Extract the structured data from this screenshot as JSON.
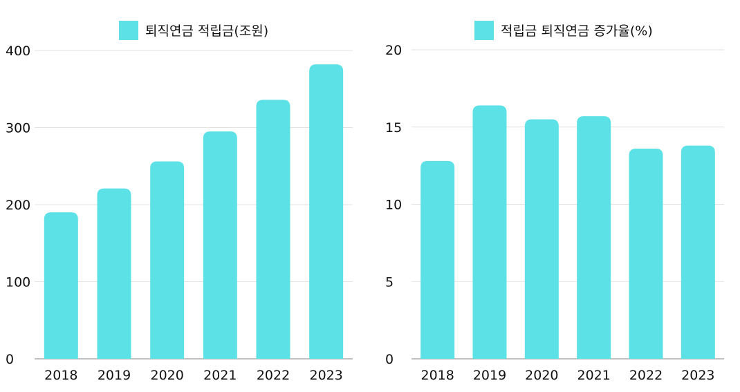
{
  "chart_data": [
    {
      "type": "bar",
      "categories": [
        "2018",
        "2019",
        "2020",
        "2021",
        "2022",
        "2023"
      ],
      "series": [
        {
          "name": "퇴직연금 적립금(조원)",
          "values": [
            190,
            221,
            256,
            295,
            336,
            382
          ]
        }
      ],
      "ylim": [
        0,
        400
      ],
      "yticks": [
        0,
        100,
        200,
        300,
        400
      ],
      "grid": true,
      "legend": "top",
      "color": "#5ce1e6"
    },
    {
      "type": "bar",
      "categories": [
        "2018",
        "2019",
        "2020",
        "2021",
        "2022",
        "2023"
      ],
      "series": [
        {
          "name": "적립금 퇴직연금 증가율(%)",
          "values": [
            12.8,
            16.4,
            15.5,
            15.7,
            13.6,
            13.8
          ]
        }
      ],
      "ylim": [
        0,
        20
      ],
      "yticks": [
        0,
        5,
        10,
        15,
        20
      ],
      "grid": true,
      "legend": "top",
      "color": "#5ce1e6"
    }
  ]
}
